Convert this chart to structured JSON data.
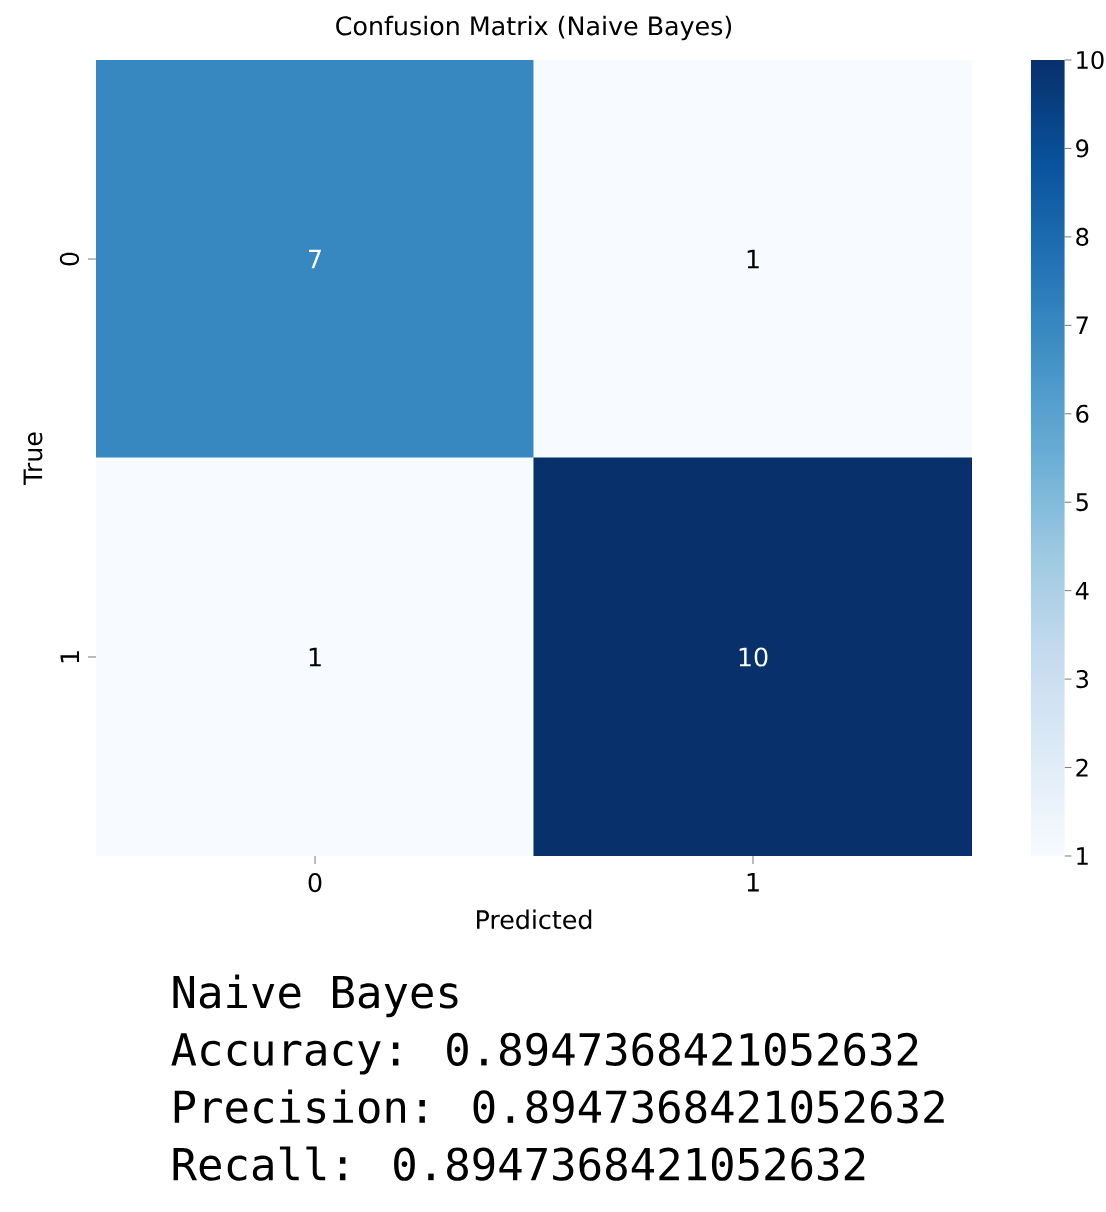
{
  "chart_data": {
    "type": "heatmap",
    "title": "Confusion Matrix (Naive Bayes)",
    "xlabel": "Predicted",
    "ylabel": "True",
    "categories": [
      "0",
      "1"
    ],
    "y_categories": [
      "0",
      "1"
    ],
    "cells": [
      [
        7,
        1
      ],
      [
        1,
        10
      ]
    ],
    "clim": [
      1,
      10
    ],
    "cticks": [
      1,
      2,
      3,
      4,
      5,
      6,
      7,
      8,
      9,
      10
    ],
    "data_labels": true,
    "annotations": [
      "Naive Bayes",
      "Accuracy: 0.8947368421052632",
      "Precision: 0.8947368421052632",
      "Recall: 0.8947368421052632"
    ]
  }
}
